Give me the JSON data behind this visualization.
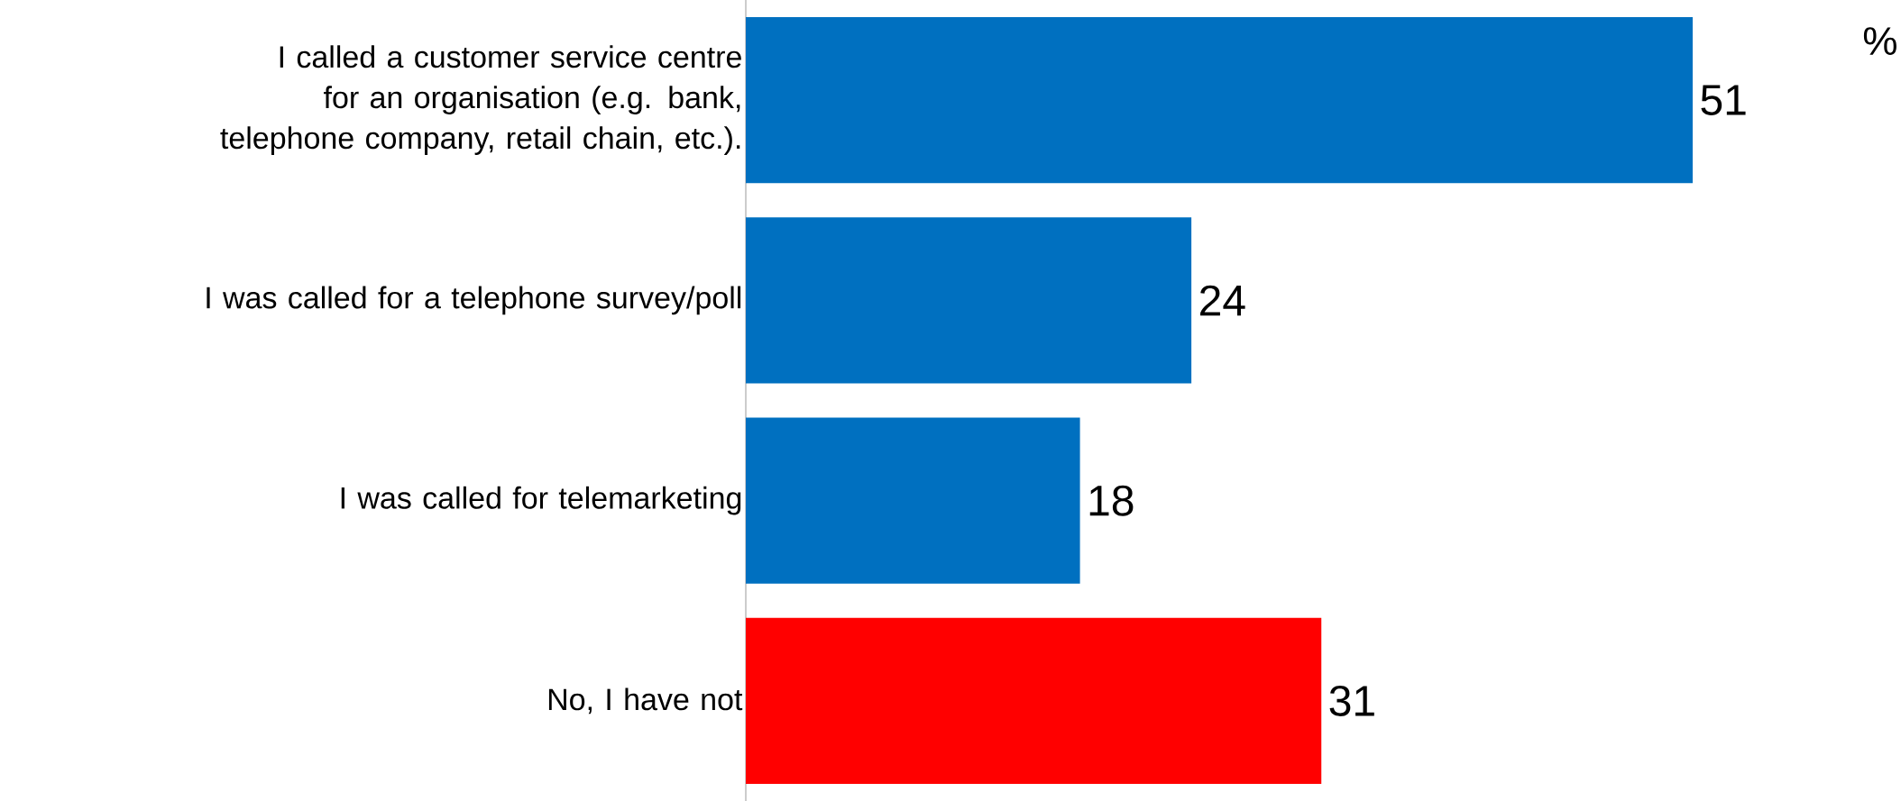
{
  "chart_data": {
    "type": "bar",
    "orientation": "horizontal",
    "categories": [
      "I called a customer service centre for an organisation (e.g. bank, telephone company, retail chain, etc.).",
      "I was called for a telephone survey/poll",
      "I was called for telemarketing",
      "No, I have not"
    ],
    "values": [
      51,
      24,
      18,
      31
    ],
    "colors": [
      "#0070c0",
      "#0070c0",
      "#0070c0",
      "#ff0000"
    ],
    "data_labels": true,
    "annotations": [
      "%"
    ]
  }
}
